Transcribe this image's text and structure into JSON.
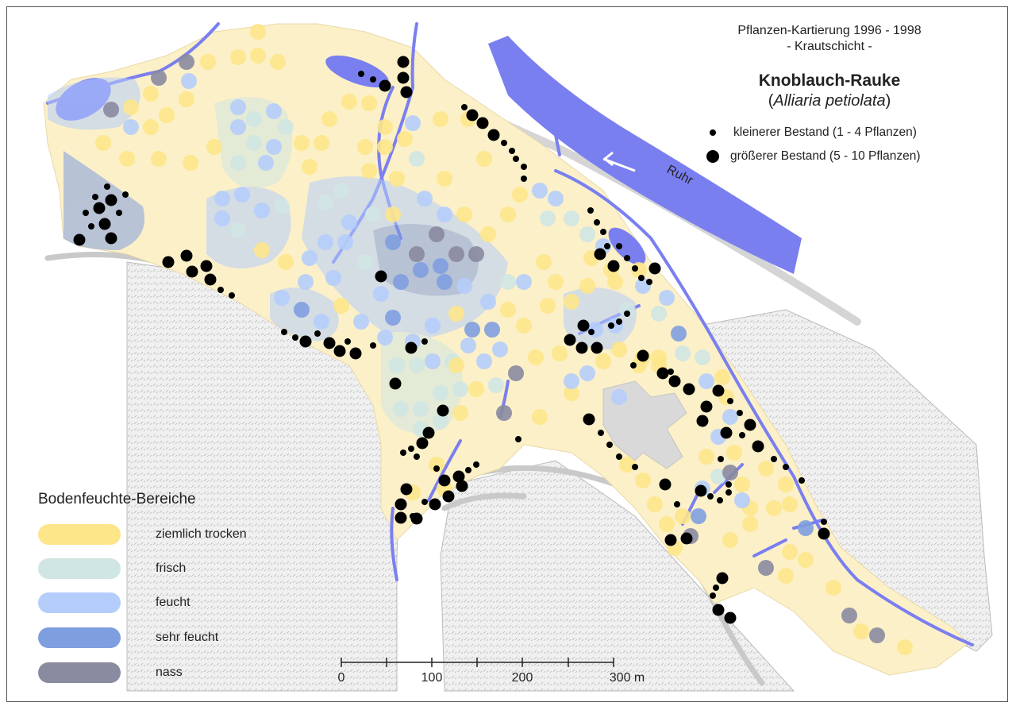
{
  "title": {
    "line1": "Pflanzen-Kartierung 1996 - 1998",
    "line2": "- Krautschicht -",
    "species_common": "Knoblauch-Rauke",
    "species_latin": "Alliaria petiolata"
  },
  "occurrence_legend": {
    "small": "kleinerer Bestand (1 - 4 Pflanzen)",
    "large": "größerer Bestand (5 - 10 Pflanzen)"
  },
  "river_label": "Ruhr",
  "moisture_legend": {
    "title": "Bodenfeuchte-Bereiche",
    "items": [
      {
        "label": "ziemlich trocken",
        "color": "#fde58a"
      },
      {
        "label": "frisch",
        "color": "#cfe6e3"
      },
      {
        "label": "feucht",
        "color": "#b5cdfb"
      },
      {
        "label": "sehr feucht",
        "color": "#7f9ee0"
      },
      {
        "label": "nass",
        "color": "#8a8aa0"
      }
    ]
  },
  "scale_bar": {
    "labels": [
      "0",
      "100",
      "200",
      "300 m"
    ]
  },
  "colors": {
    "area_fill": "#fcf0c8",
    "water": "#7a7ff0",
    "building": "#d9d9d9",
    "hatched": "#ebebeb",
    "dot": "#000000"
  }
}
